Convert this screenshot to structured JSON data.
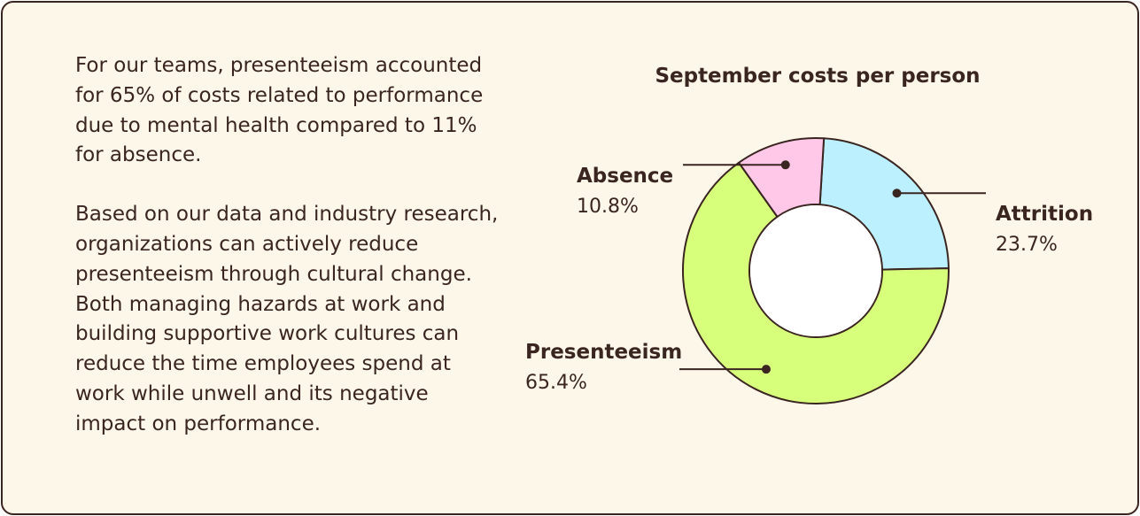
{
  "paragraphs": [
    "For our teams, presenteeism accounted for 65% of costs related to performance due to mental health compared to 11% for absence.",
    "Based on our data and industry research, organizations can actively reduce presenteeism through cultural change. Both managing hazards at work and building supportive work cultures can reduce the time employees spend at work while unwell and its negative impact on performance."
  ],
  "chart_data": {
    "type": "pie",
    "variant": "donut",
    "title": "September costs per person",
    "slices": [
      {
        "name": "Attrition",
        "value": 23.7,
        "label": "23.7%",
        "color": "#bdf0ff"
      },
      {
        "name": "Presenteeism",
        "value": 65.4,
        "label": "65.4%",
        "color": "#d8ff7c"
      },
      {
        "name": "Absence",
        "value": 10.8,
        "label": "10.8%",
        "color": "#ffc8e8"
      }
    ],
    "colors": {
      "outline": "#3a2520",
      "hole": "#ffffff"
    }
  }
}
